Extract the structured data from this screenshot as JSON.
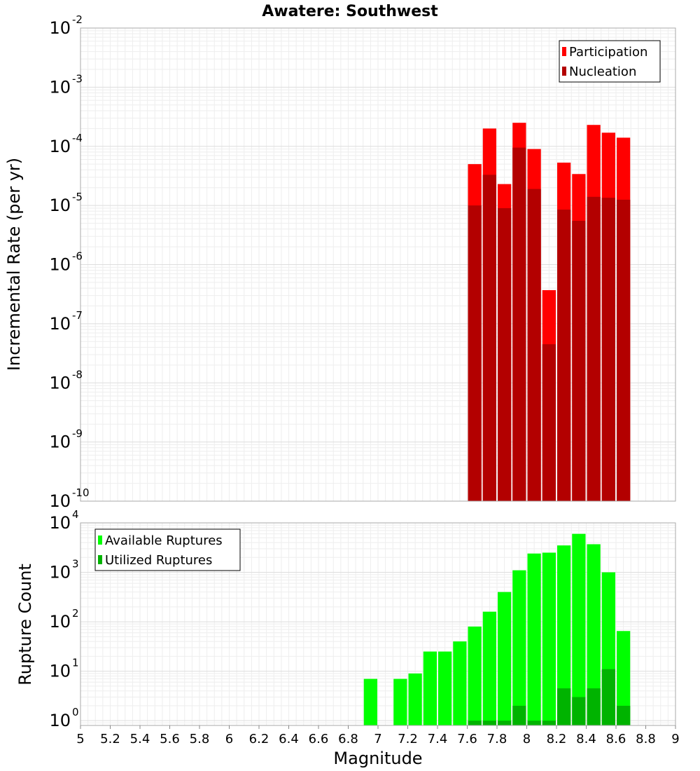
{
  "title": "Awatere: Southwest",
  "chart_data": [
    {
      "type": "bar",
      "scale": "log",
      "ylabel": "Incremental Rate (per yr)",
      "ylim": [
        1e-10,
        0.01
      ],
      "ytick_exponents": [
        -10,
        -9,
        -8,
        -7,
        -6,
        -5,
        -4,
        -3,
        -2
      ],
      "grid": true,
      "legend_position": "top-right",
      "series": [
        {
          "name": "Participation",
          "color": "#ff0000",
          "x": [
            7.65,
            7.75,
            7.85,
            7.95,
            8.05,
            8.15,
            8.25,
            8.35,
            8.45,
            8.55,
            8.65
          ],
          "values": [
            5e-05,
            0.0002,
            2.3e-05,
            0.00025,
            9e-05,
            3.7e-07,
            5.3e-05,
            3.4e-05,
            0.00023,
            0.00017,
            0.00014
          ]
        },
        {
          "name": "Nucleation",
          "color": "#b30000",
          "x": [
            7.65,
            7.75,
            7.85,
            7.95,
            8.05,
            8.15,
            8.25,
            8.35,
            8.45,
            8.55,
            8.65
          ],
          "values": [
            1e-05,
            3.3e-05,
            9e-06,
            9.5e-05,
            1.9e-05,
            4.5e-08,
            8.5e-06,
            5.5e-06,
            1.4e-05,
            1.35e-05,
            1.25e-05
          ]
        }
      ]
    },
    {
      "type": "bar",
      "scale": "log",
      "ylabel": "Rupture Count",
      "xlabel": "Magnitude",
      "ylim": [
        0.8,
        10000
      ],
      "ytick_exponents": [
        0,
        1,
        2,
        3,
        4
      ],
      "xlim": [
        5,
        9
      ],
      "xticks": [
        "5",
        "5.2",
        "5.4",
        "5.6",
        "5.8",
        "6",
        "6.2",
        "6.4",
        "6.6",
        "6.8",
        "7",
        "7.2",
        "7.4",
        "7.6",
        "7.8",
        "8",
        "8.2",
        "8.4",
        "8.6",
        "8.8",
        "9"
      ],
      "grid": true,
      "legend_position": "top-left",
      "series": [
        {
          "name": "Available Ruptures",
          "color": "#00ff00",
          "x": [
            6.95,
            7.15,
            7.25,
            7.35,
            7.45,
            7.55,
            7.65,
            7.75,
            7.85,
            7.95,
            8.05,
            8.15,
            8.25,
            8.35,
            8.45,
            8.55,
            8.65
          ],
          "values": [
            7,
            7,
            9,
            25,
            25,
            40,
            80,
            160,
            400,
            1100,
            2400,
            2500,
            3500,
            6000,
            3700,
            1000,
            65
          ]
        },
        {
          "name": "Utilized Ruptures",
          "color": "#00b300",
          "x": [
            7.65,
            7.75,
            7.85,
            7.95,
            8.05,
            8.15,
            8.25,
            8.35,
            8.45,
            8.55,
            8.65
          ],
          "values": [
            1,
            1,
            1,
            2,
            1,
            1,
            4.5,
            3,
            4.5,
            11,
            2
          ]
        }
      ]
    }
  ]
}
